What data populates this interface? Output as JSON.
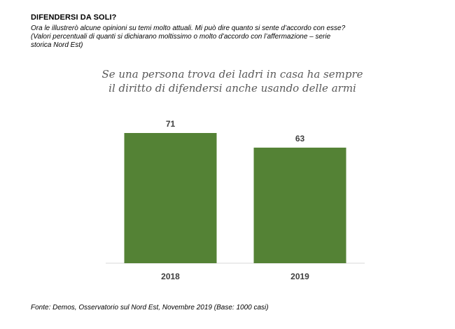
{
  "header": {
    "title": "DIFENDERSI DA SOLI?",
    "subtitle_lines": [
      "Ora le illustrerò alcune opinioni su temi molto attuali. Mi può dire quanto si sente d’accordo con esse?",
      "(Valori percentuali di quanti si dichiarano moltissimo o molto d’accordo con l’affermazione – serie",
      "storica Nord Est)"
    ]
  },
  "chart_data": {
    "type": "bar",
    "title_lines": [
      "Se una persona trova dei ladri in casa ha sempre",
      "il diritto di difendersi anche usando delle armi"
    ],
    "categories": [
      "2018",
      "2019"
    ],
    "values": [
      71,
      63
    ],
    "data_labels": [
      "71",
      "63"
    ],
    "ylim": [
      0,
      100
    ],
    "grid": false,
    "legend": "none",
    "bar_color": "#548235",
    "xlabel": "",
    "ylabel": ""
  },
  "footer": {
    "source": "Fonte: Demos, Osservatorio sul Nord Est, Novembre 2019 (Base: 1000  casi)"
  }
}
